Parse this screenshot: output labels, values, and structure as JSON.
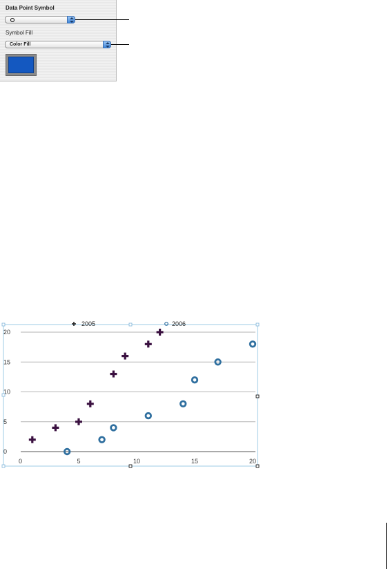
{
  "inspector": {
    "data_point_symbol_label": "Data Point Symbol",
    "symbol_fill_label": "Symbol Fill",
    "symbol_fill_value": "Color Fill",
    "symbol_glyph": "circle-icon",
    "swatch_color": "#1458c0"
  },
  "chart_data": {
    "type": "scatter",
    "xlim": [
      0,
      20
    ],
    "ylim": [
      0,
      20
    ],
    "x_ticks": [
      "0",
      "5",
      "10",
      "15",
      "20"
    ],
    "y_ticks": [
      "0",
      "5",
      "10",
      "15",
      "20"
    ],
    "grid": true,
    "legend_position": "top",
    "series": [
      {
        "name": "2005",
        "marker": "plus",
        "color": "#3a1040",
        "x": [
          1,
          3,
          5,
          6,
          8,
          9,
          11,
          12
        ],
        "y": [
          2,
          4,
          5,
          8,
          13,
          16,
          18,
          20
        ]
      },
      {
        "name": "2006",
        "marker": "circle",
        "color": "#2f6f9f",
        "x": [
          4,
          7,
          8,
          11,
          14,
          15,
          17,
          20
        ],
        "y": [
          0,
          2,
          4,
          6,
          8,
          12,
          15,
          18
        ]
      }
    ]
  }
}
